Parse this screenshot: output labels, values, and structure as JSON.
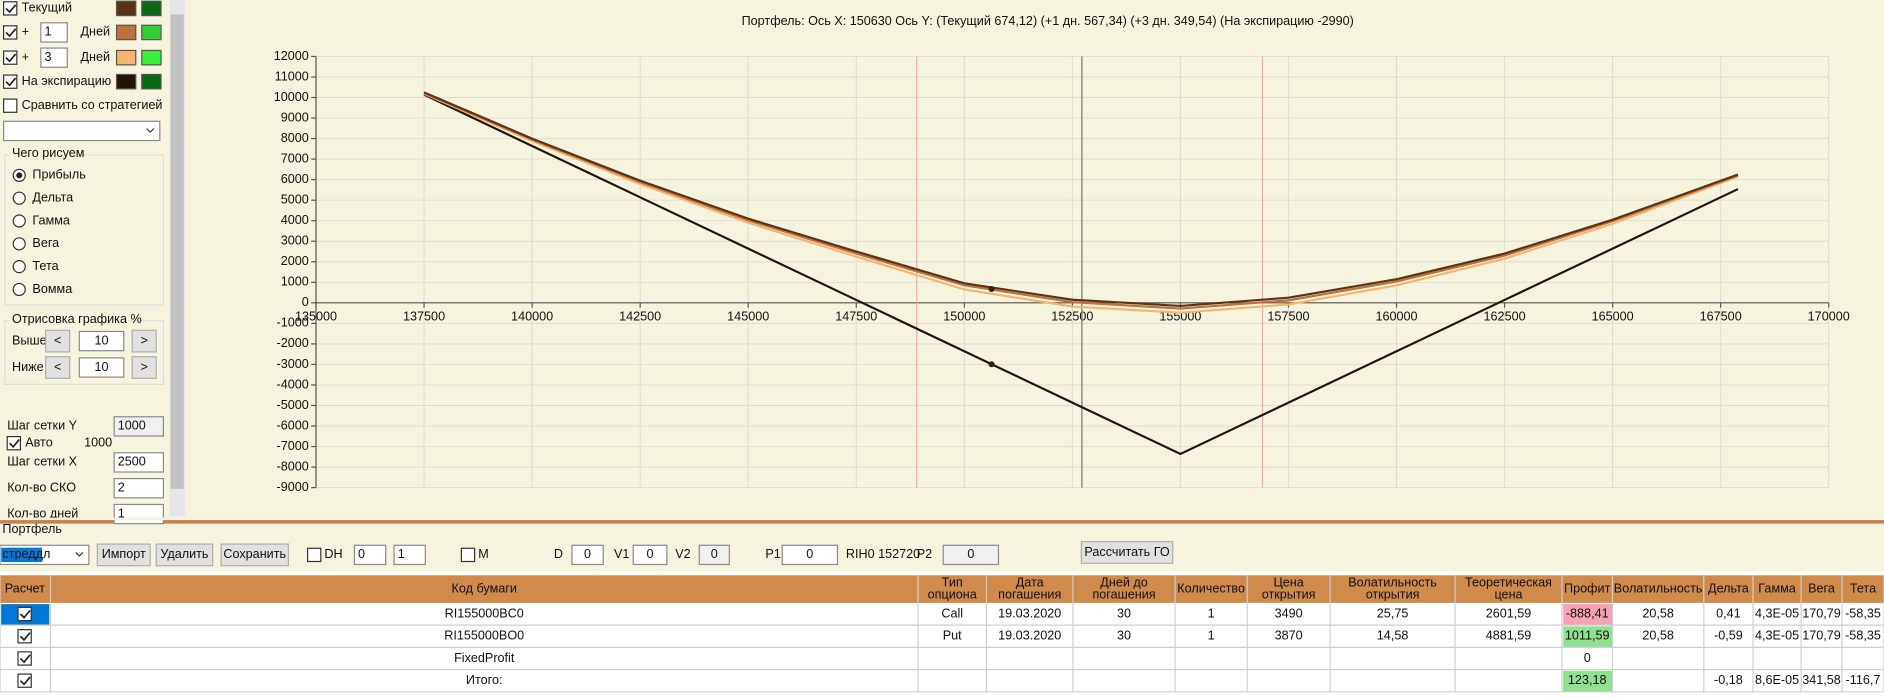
{
  "left_panel": {
    "day_rows": [
      {
        "prefix": "+",
        "days": "1",
        "unit": "Дней"
      },
      {
        "prefix": "+",
        "days": "3",
        "unit": "Дней"
      }
    ],
    "compare": "Сравнить со стратегией",
    "draw_group": {
      "title": "Чего рисуем",
      "options": [
        "Прибыль",
        "Дельта",
        "Гамма",
        "Вега",
        "Тета",
        "Вомма"
      ]
    },
    "percent_group": {
      "title": "Отрисовка графика %",
      "above": "Выше",
      "above_value": "10",
      "below": "Ниже",
      "below_value": "10",
      "less": "<",
      "more": ">"
    },
    "grid_y_label": "Шаг сетки Y",
    "grid_y_value": "1000",
    "auto_label": "Авто",
    "auto_value": "1000",
    "settings": [
      {
        "label": "Шаг сетки X",
        "value": "2500"
      },
      {
        "label": "Кол-во СКО",
        "value": "2"
      },
      {
        "label": "Кол-во дней",
        "value": "1"
      }
    ]
  },
  "toolbar": {
    "title": "Портфель",
    "strategy": "стреддл",
    "buttons": [
      "Импорт",
      "Удалить",
      "Сохранить"
    ],
    "dh": "DH",
    "spin1": "0",
    "spin2": "1",
    "m": "M",
    "d_label": "D",
    "d_value": "0",
    "v1_label": "V1",
    "v1_value": "0",
    "v2_label": "V2",
    "v2_value": "0",
    "p1_label": "P1",
    "p1_value": "0",
    "ticker": "RIH0 152720",
    "p2_label": "P2",
    "p2_value": "0",
    "go_button": "Рассчитать ГО"
  },
  "table": {
    "header": [
      [
        "Расчет"
      ],
      [
        "Код бумаги"
      ],
      [
        "Тип",
        "опциона"
      ],
      [
        "Дата",
        "погашения"
      ],
      [
        "Дней до",
        "погашения"
      ],
      [
        "Количество"
      ],
      [
        "Цена",
        "открытия"
      ],
      [
        "Волатильность",
        "открытия"
      ],
      [
        "Теоретическая",
        "цена"
      ],
      [
        "Профит"
      ],
      [
        "Волатильность"
      ],
      [
        "Дельта"
      ],
      [
        "Гамма"
      ],
      [
        "Вега"
      ],
      [
        "Тета"
      ]
    ],
    "rows": [
      [
        "RI155000BC0",
        "Call",
        "19.03.2020",
        "30",
        "1",
        "3490",
        "25,75",
        "2601,59",
        "-888,41",
        "20,58",
        "0,41",
        "4,3E-05",
        "170,79",
        "-58,35"
      ],
      [
        "RI155000BO0",
        "Put",
        "19.03.2020",
        "30",
        "1",
        "3870",
        "14,58",
        "4881,59",
        "1011,59",
        "20,58",
        "-0,59",
        "4,3E-05",
        "170,79",
        "-58,35"
      ],
      [
        "FixedProfit",
        null,
        null,
        null,
        null,
        null,
        null,
        null,
        "0",
        null,
        null,
        null,
        null,
        null
      ],
      [
        "Итого:",
        null,
        null,
        null,
        null,
        null,
        null,
        null,
        "123,18",
        null,
        "-0,18",
        "8,6E-05",
        "341,58",
        "-116,7"
      ]
    ]
  },
  "chart_data": {
    "type": "line",
    "title": "Портфель:  Ось X:  150630  Ось Y:   (Текущий 674,12)   (+1 дн. 567,34)   (+3 дн. 349,54)   (На экспирацию -2990)",
    "x": [
      137500,
      140000,
      142500,
      145000,
      147500,
      150000,
      152500,
      155000,
      157500,
      160000,
      162500,
      165000,
      167900
    ],
    "series": [
      {
        "name": "Текущий",
        "color": "#5a3418",
        "values": [
          10250,
          8000,
          5950,
          4100,
          2500,
          950,
          150,
          -150,
          250,
          1150,
          2400,
          4050,
          6250
        ]
      },
      {
        "color": "#c0703a",
        "values": [
          10220,
          7950,
          5880,
          4020,
          2400,
          850,
          30,
          -280,
          120,
          1040,
          2300,
          3980,
          6200
        ]
      },
      {
        "color": "#f7b46e",
        "values": [
          10180,
          7880,
          5780,
          3900,
          2250,
          650,
          -180,
          -480,
          -80,
          850,
          2150,
          3850,
          6150
        ]
      },
      {
        "name": "На экспирацию",
        "color": "#221408",
        "values": [
          10140,
          7640,
          5140,
          2640,
          140,
          -2360,
          -4860,
          -7360,
          -4860,
          -2360,
          140,
          2640,
          5540
        ]
      }
    ],
    "points": [
      {
        "x": 150630,
        "y": 674.12
      },
      {
        "x": 150630,
        "y": -2990
      }
    ],
    "vertical_lines": [
      {
        "value": 148900,
        "color": "#f2a8a8"
      },
      {
        "value": 152720,
        "color": "#6b7b7b"
      },
      {
        "value": 156900,
        "color": "#f2a8a8"
      }
    ],
    "xlim": [
      135000,
      170000
    ],
    "xticks": [
      135000,
      137500,
      140000,
      142500,
      145000,
      147500,
      150000,
      152500,
      155000,
      157500,
      160000,
      162500,
      165000,
      167500,
      170000
    ],
    "ylim": [
      -9000,
      12000
    ],
    "yticks": [
      -9000,
      -8000,
      -7000,
      -6000,
      -5000,
      -4000,
      -3000,
      -2000,
      -1000,
      0,
      1000,
      2000,
      3000,
      4000,
      5000,
      6000,
      7000,
      8000,
      9000,
      10000,
      11000,
      12000
    ],
    "grid": true
  }
}
